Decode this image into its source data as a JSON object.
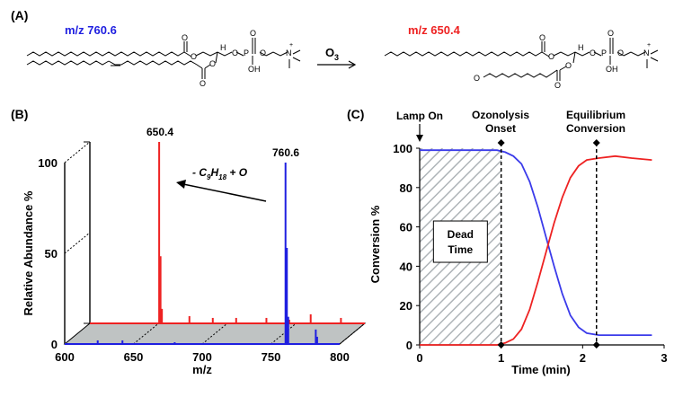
{
  "panel_a": {
    "label": "(A)",
    "reactant_mz": "m/z 760.6",
    "product_mz": "m/z 650.4",
    "reagent": "O",
    "reagent_sub": "3",
    "reactant_color": "#1f1fe0",
    "product_color": "#ee2222"
  },
  "chart_data": [
    {
      "type": "bar",
      "panel_label": "(B)",
      "xlabel": "m/z",
      "ylabel": "Relative Abundance %",
      "xlim": [
        600,
        800
      ],
      "ylim": [
        0,
        100
      ],
      "xticks": [
        600,
        650,
        700,
        750,
        800
      ],
      "yticks": [
        0,
        50,
        100
      ],
      "annotation_loss_prefix": "- C",
      "annotation_loss_sub1": "9",
      "annotation_loss_mid": "H",
      "annotation_loss_sub2": "18",
      "annotation_loss_suffix": " + O",
      "peak_labels": [
        "650.4",
        "760.6"
      ],
      "series": [
        {
          "color": "#ee2222",
          "peaks": [
            {
              "mz": 650.4,
              "abundance": 100
            },
            {
              "mz": 651.4,
              "abundance": 37
            },
            {
              "mz": 652.4,
              "abundance": 8
            },
            {
              "mz": 672.4,
              "abundance": 4
            },
            {
              "mz": 689.4,
              "abundance": 3
            },
            {
              "mz": 706.4,
              "abundance": 3
            },
            {
              "mz": 728.4,
              "abundance": 3
            },
            {
              "mz": 745.0,
              "abundance": 2
            },
            {
              "mz": 760.6,
              "abundance": 5
            },
            {
              "mz": 782.6,
              "abundance": 3
            }
          ]
        },
        {
          "color": "#1f1fe0",
          "peaks": [
            {
              "mz": 624.0,
              "abundance": 2
            },
            {
              "mz": 642.0,
              "abundance": 2
            },
            {
              "mz": 680.0,
              "abundance": 1
            },
            {
              "mz": 760.6,
              "abundance": 100
            },
            {
              "mz": 761.6,
              "abundance": 53
            },
            {
              "mz": 762.6,
              "abundance": 15
            },
            {
              "mz": 782.6,
              "abundance": 8
            },
            {
              "mz": 783.6,
              "abundance": 4
            }
          ]
        }
      ]
    },
    {
      "type": "line",
      "panel_label": "(C)",
      "xlabel": "Time (min)",
      "ylabel": "Conversion %",
      "xlim": [
        0,
        3
      ],
      "ylim": [
        0,
        100
      ],
      "xticks": [
        0,
        1,
        2,
        3
      ],
      "yticks": [
        0,
        20,
        40,
        60,
        80,
        100
      ],
      "annotations": {
        "lamp_on": "Lamp On",
        "ozonolysis_line1": "Ozonolysis",
        "ozonolysis_line2": "Onset",
        "equilibrium_line1": "Equilibrium",
        "equilibrium_line2": "Conversion",
        "dead_line1": "Dead",
        "dead_line2": "Time"
      },
      "markers_x": [
        1.0,
        2.17
      ],
      "dead_time": [
        0,
        1.0
      ],
      "series": [
        {
          "color": "#3b3bea",
          "x": [
            0,
            0.5,
            0.95,
            1.05,
            1.15,
            1.25,
            1.35,
            1.45,
            1.55,
            1.65,
            1.75,
            1.85,
            1.95,
            2.05,
            2.2,
            2.4,
            2.6,
            2.85
          ],
          "y": [
            99,
            99,
            99,
            98,
            96,
            92,
            83,
            70,
            55,
            40,
            26,
            15,
            9,
            6,
            5,
            5,
            5,
            5
          ]
        },
        {
          "color": "#ee2222",
          "x": [
            0,
            0.5,
            0.95,
            1.05,
            1.15,
            1.25,
            1.35,
            1.45,
            1.55,
            1.65,
            1.75,
            1.85,
            1.95,
            2.05,
            2.2,
            2.4,
            2.6,
            2.85
          ],
          "y": [
            0,
            0,
            0,
            1,
            3,
            8,
            18,
            32,
            47,
            62,
            75,
            85,
            91,
            94,
            95,
            96,
            95,
            94
          ]
        }
      ]
    }
  ]
}
